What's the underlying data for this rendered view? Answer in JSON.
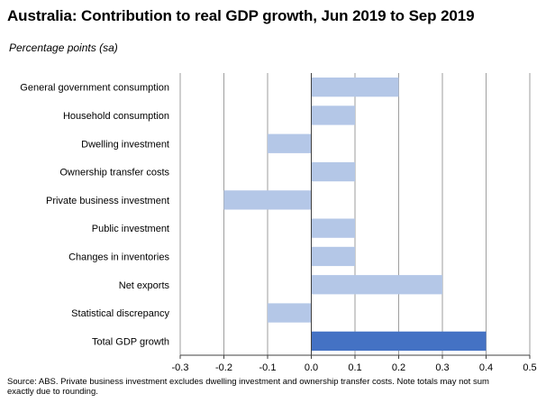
{
  "chart_data": {
    "type": "bar",
    "orientation": "horizontal",
    "title": "Australia:  Contribution  to real GDP growth, Jun 2019 to Sep 2019",
    "subtitle": "Percentage points (sa)",
    "categories": [
      "General government consumption",
      "Household consumption",
      "Dwelling investment",
      "Ownership transfer costs",
      "Private business investment",
      "Public investment",
      "Changes in inventories",
      "Net exports",
      "Statistical discrepancy",
      "Total GDP growth"
    ],
    "values": [
      0.2,
      0.1,
      -0.1,
      0.1,
      -0.2,
      0.1,
      0.1,
      0.3,
      -0.1,
      0.4
    ],
    "highlight_category": "Total GDP growth",
    "xlim": [
      -0.3,
      0.5
    ],
    "xticks": [
      -0.3,
      -0.2,
      -0.1,
      0.0,
      0.1,
      0.2,
      0.3,
      0.4,
      0.5
    ],
    "xtick_labels": [
      "-0.3",
      "-0.2",
      "-0.1",
      "0.0",
      "0.1",
      "0.2",
      "0.3",
      "0.4",
      "0.5"
    ],
    "grid": true,
    "colors": {
      "bar": "#b4c7e7",
      "highlight": "#4472c4",
      "grid": "#868686",
      "axis": "#404040"
    },
    "source": "Source: ABS. Private business investment excludes dwelling investment and ownership transfer costs. Note totals may not sum exactly due to rounding."
  }
}
